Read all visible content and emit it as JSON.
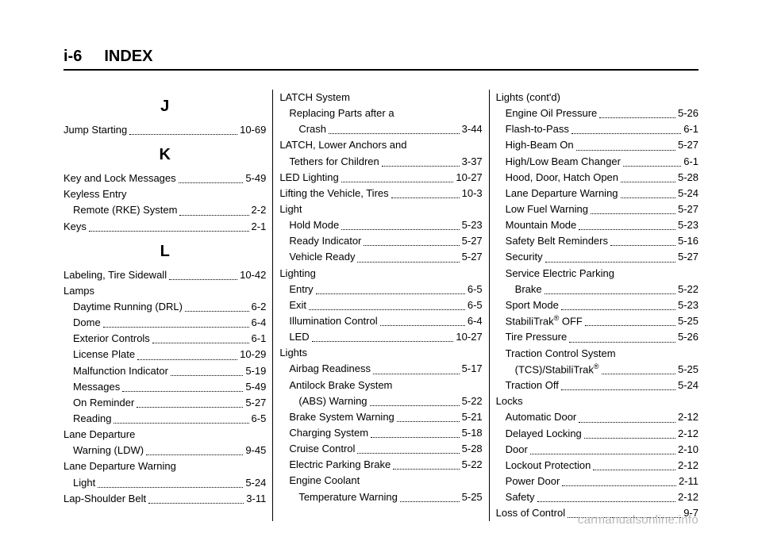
{
  "header": {
    "pgnum": "i-6",
    "title": "INDEX"
  },
  "watermark": "carmanualsonline.info",
  "columns": [
    {
      "id": "col1",
      "items": [
        {
          "type": "letter",
          "text": "J"
        },
        {
          "type": "entry",
          "label": "Jump Starting",
          "page": "10-69",
          "indent": 0
        },
        {
          "type": "letter",
          "text": "K"
        },
        {
          "type": "entry",
          "label": "Key and Lock Messages",
          "page": "5-49",
          "indent": 0
        },
        {
          "type": "subhead",
          "label": "Keyless Entry",
          "indent": 0
        },
        {
          "type": "entry",
          "label": "Remote (RKE) System",
          "page": "2-2",
          "indent": 1
        },
        {
          "type": "entry",
          "label": "Keys",
          "page": "2-1",
          "indent": 0
        },
        {
          "type": "letter",
          "text": "L"
        },
        {
          "type": "entry",
          "label": "Labeling, Tire Sidewall",
          "page": "10-42",
          "indent": 0
        },
        {
          "type": "subhead",
          "label": "Lamps",
          "indent": 0
        },
        {
          "type": "entry",
          "label": "Daytime Running (DRL)",
          "page": "6-2",
          "indent": 1
        },
        {
          "type": "entry",
          "label": "Dome",
          "page": "6-4",
          "indent": 1
        },
        {
          "type": "entry",
          "label": "Exterior Controls",
          "page": "6-1",
          "indent": 1
        },
        {
          "type": "entry",
          "label": "License Plate",
          "page": "10-29",
          "indent": 1
        },
        {
          "type": "entry",
          "label": "Malfunction Indicator",
          "page": "5-19",
          "indent": 1
        },
        {
          "type": "entry",
          "label": "Messages",
          "page": "5-49",
          "indent": 1
        },
        {
          "type": "entry",
          "label": "On Reminder",
          "page": "5-27",
          "indent": 1
        },
        {
          "type": "entry",
          "label": "Reading",
          "page": "6-5",
          "indent": 1
        },
        {
          "type": "subhead",
          "label": "Lane Departure",
          "indent": 0
        },
        {
          "type": "entry",
          "label": "Warning (LDW)",
          "page": "9-45",
          "indent": 1
        },
        {
          "type": "subhead",
          "label": "Lane Departure Warning",
          "indent": 0
        },
        {
          "type": "entry",
          "label": "Light",
          "page": "5-24",
          "indent": 1
        },
        {
          "type": "entry",
          "label": "Lap-Shoulder Belt",
          "page": "3-11",
          "indent": 0
        }
      ]
    },
    {
      "id": "col2",
      "items": [
        {
          "type": "subhead",
          "label": "LATCH System",
          "indent": 0
        },
        {
          "type": "subhead",
          "label": "Replacing Parts after a",
          "indent": 1
        },
        {
          "type": "entry",
          "label": "Crash",
          "page": "3-44",
          "indent": 2
        },
        {
          "type": "subhead",
          "label": "LATCH, Lower Anchors and",
          "indent": 0
        },
        {
          "type": "entry",
          "label": "Tethers for Children",
          "page": "3-37",
          "indent": 1
        },
        {
          "type": "entry",
          "label": "LED Lighting",
          "page": "10-27",
          "indent": 0
        },
        {
          "type": "entry",
          "label": "Lifting the Vehicle, Tires",
          "page": "10-3",
          "indent": 0
        },
        {
          "type": "subhead",
          "label": "Light",
          "indent": 0
        },
        {
          "type": "entry",
          "label": "Hold Mode",
          "page": "5-23",
          "indent": 1
        },
        {
          "type": "entry",
          "label": "Ready Indicator",
          "page": "5-27",
          "indent": 1
        },
        {
          "type": "entry",
          "label": "Vehicle Ready",
          "page": "5-27",
          "indent": 1
        },
        {
          "type": "subhead",
          "label": "Lighting",
          "indent": 0
        },
        {
          "type": "entry",
          "label": "Entry",
          "page": "6-5",
          "indent": 1
        },
        {
          "type": "entry",
          "label": "Exit",
          "page": "6-5",
          "indent": 1
        },
        {
          "type": "entry",
          "label": "Illumination Control",
          "page": "6-4",
          "indent": 1
        },
        {
          "type": "entry",
          "label": "LED",
          "page": "10-27",
          "indent": 1
        },
        {
          "type": "subhead",
          "label": "Lights",
          "indent": 0
        },
        {
          "type": "entry",
          "label": "Airbag Readiness",
          "page": "5-17",
          "indent": 1
        },
        {
          "type": "subhead",
          "label": "Antilock Brake System",
          "indent": 1
        },
        {
          "type": "entry",
          "label": "(ABS) Warning",
          "page": "5-22",
          "indent": 2
        },
        {
          "type": "entry",
          "label": "Brake System Warning",
          "page": "5-21",
          "indent": 1
        },
        {
          "type": "entry",
          "label": "Charging System",
          "page": "5-18",
          "indent": 1
        },
        {
          "type": "entry",
          "label": "Cruise Control",
          "page": "5-28",
          "indent": 1
        },
        {
          "type": "entry",
          "label": "Electric Parking Brake",
          "page": "5-22",
          "indent": 1
        },
        {
          "type": "subhead",
          "label": "Engine Coolant",
          "indent": 1
        },
        {
          "type": "entry",
          "label": "Temperature Warning",
          "page": "5-25",
          "indent": 2
        }
      ]
    },
    {
      "id": "col3",
      "items": [
        {
          "type": "subhead",
          "label": "Lights (cont'd)",
          "indent": 0
        },
        {
          "type": "entry",
          "label": "Engine Oil Pressure",
          "page": "5-26",
          "indent": 1
        },
        {
          "type": "entry",
          "label": "Flash-to-Pass",
          "page": "6-1",
          "indent": 1
        },
        {
          "type": "entry",
          "label": "High-Beam On",
          "page": "5-27",
          "indent": 1
        },
        {
          "type": "entry",
          "label": "High/Low Beam Changer",
          "page": "6-1",
          "indent": 1
        },
        {
          "type": "entry",
          "label": "Hood, Door, Hatch Open",
          "page": "5-28",
          "indent": 1
        },
        {
          "type": "entry",
          "label": "Lane Departure Warning",
          "page": "5-24",
          "indent": 1
        },
        {
          "type": "entry",
          "label": "Low Fuel Warning",
          "page": "5-27",
          "indent": 1
        },
        {
          "type": "entry",
          "label": "Mountain Mode",
          "page": "5-23",
          "indent": 1
        },
        {
          "type": "entry",
          "label": "Safety Belt Reminders",
          "page": "5-16",
          "indent": 1
        },
        {
          "type": "entry",
          "label": "Security",
          "page": "5-27",
          "indent": 1
        },
        {
          "type": "subhead",
          "label": "Service Electric Parking",
          "indent": 1
        },
        {
          "type": "entry",
          "label": "Brake",
          "page": "5-22",
          "indent": 2
        },
        {
          "type": "entry",
          "label": "Sport Mode",
          "page": "5-23",
          "indent": 1
        },
        {
          "type": "entry",
          "label": "StabiliTrak® OFF",
          "page": "5-25",
          "indent": 1,
          "html": true,
          "labelHtml": "StabiliTrak<sup>®</sup> OFF"
        },
        {
          "type": "entry",
          "label": "Tire Pressure",
          "page": "5-26",
          "indent": 1
        },
        {
          "type": "subhead",
          "label": "Traction Control System",
          "indent": 1
        },
        {
          "type": "entry",
          "label": "(TCS)/StabiliTrak®",
          "page": "5-25",
          "indent": 2,
          "html": true,
          "labelHtml": "(TCS)/StabiliTrak<sup>®</sup>"
        },
        {
          "type": "entry",
          "label": "Traction Off",
          "page": "5-24",
          "indent": 1
        },
        {
          "type": "subhead",
          "label": "Locks",
          "indent": 0
        },
        {
          "type": "entry",
          "label": "Automatic Door",
          "page": "2-12",
          "indent": 1
        },
        {
          "type": "entry",
          "label": "Delayed Locking",
          "page": "2-12",
          "indent": 1
        },
        {
          "type": "entry",
          "label": "Door",
          "page": "2-10",
          "indent": 1
        },
        {
          "type": "entry",
          "label": "Lockout Protection",
          "page": "2-12",
          "indent": 1
        },
        {
          "type": "entry",
          "label": "Power Door",
          "page": "2-11",
          "indent": 1
        },
        {
          "type": "entry",
          "label": "Safety",
          "page": "2-12",
          "indent": 1
        },
        {
          "type": "entry",
          "label": "Loss of Control",
          "page": "9-7",
          "indent": 0
        }
      ]
    }
  ]
}
